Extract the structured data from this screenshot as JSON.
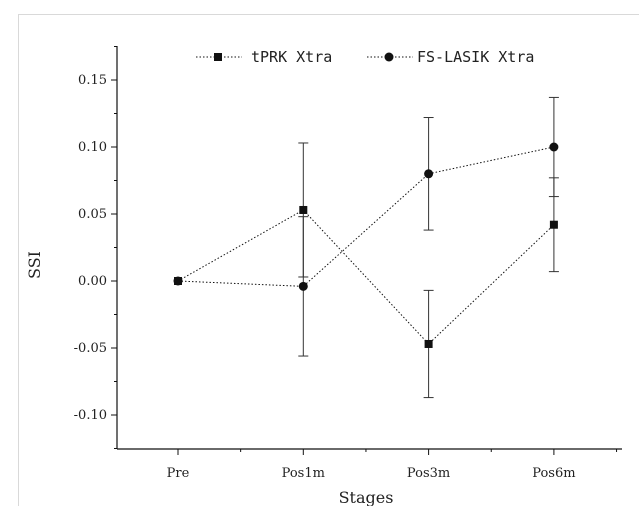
{
  "chart_data": {
    "type": "line",
    "xlabel": "Stages",
    "ylabel": "SSI",
    "categories": [
      "Pre",
      "Pos1m",
      "Pos3m",
      "Pos6m"
    ],
    "ylim": [
      -0.125,
      0.175
    ],
    "yticks": [
      -0.1,
      -0.05,
      0.0,
      0.05,
      0.1,
      0.15
    ],
    "ytick_labels": [
      "-0.10",
      "-0.05",
      "0.00",
      "0.05",
      "0.10",
      "0.15"
    ],
    "grid": false,
    "legend_position": "top",
    "series": [
      {
        "name": "tPRK Xtra",
        "marker": "square",
        "values": [
          0.0,
          0.053,
          -0.047,
          0.042
        ],
        "error": [
          0.0,
          0.05,
          0.04,
          0.035
        ]
      },
      {
        "name": "FS-LASIK Xtra",
        "marker": "circle",
        "values": [
          0.0,
          -0.004,
          0.08,
          0.1
        ],
        "error": [
          0.0,
          0.052,
          0.042,
          0.037
        ]
      }
    ],
    "colors": {
      "line": "#111111",
      "axis": "#111111"
    }
  }
}
